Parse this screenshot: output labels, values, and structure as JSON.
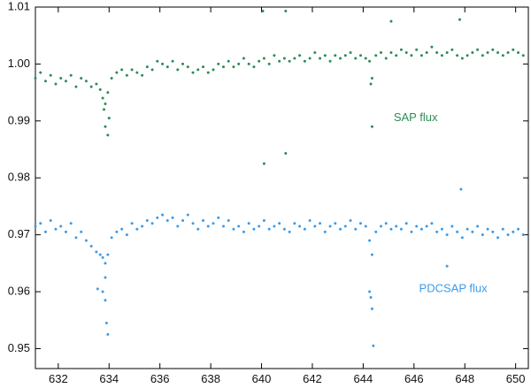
{
  "chart_data": {
    "type": "scatter",
    "title": "",
    "xlabel": "",
    "ylabel": "",
    "xlim": [
      631.1,
      650.5
    ],
    "ylim": [
      0.9465,
      1.01
    ],
    "xticks": [
      632,
      634,
      636,
      638,
      640,
      642,
      644,
      646,
      648,
      650
    ],
    "yticks": [
      0.95,
      0.96,
      0.97,
      0.98,
      0.99,
      1.0,
      1.01
    ],
    "ytick_labels": [
      "0.95",
      "0.96",
      "0.97",
      "0.98",
      "0.99",
      "1.00",
      "1.01"
    ],
    "grid": false,
    "series": [
      {
        "name": "SAP flux",
        "color": "#2e8b57",
        "label_at": [
          645.2,
          0.9905
        ],
        "x": [
          631.1,
          631.3,
          631.5,
          631.7,
          631.9,
          632.1,
          632.3,
          632.5,
          632.7,
          632.9,
          633.1,
          633.3,
          633.5,
          633.65,
          633.75,
          633.85,
          633.95,
          634.1,
          634.3,
          634.5,
          634.7,
          634.9,
          635.1,
          635.3,
          635.5,
          635.7,
          635.9,
          636.1,
          636.3,
          636.5,
          636.7,
          636.9,
          637.1,
          637.3,
          637.5,
          637.7,
          637.9,
          638.1,
          638.3,
          638.5,
          638.7,
          638.9,
          639.1,
          639.3,
          639.5,
          639.7,
          639.9,
          640.1,
          640.3,
          640.5,
          640.7,
          640.9,
          641.1,
          641.3,
          641.5,
          641.7,
          641.9,
          642.1,
          642.3,
          642.5,
          642.7,
          642.9,
          643.1,
          643.3,
          643.5,
          643.7,
          643.9,
          644.1,
          644.25,
          644.35,
          644.5,
          644.7,
          644.9,
          645.1,
          645.3,
          645.5,
          645.7,
          645.9,
          646.1,
          646.3,
          646.5,
          646.7,
          646.9,
          647.1,
          647.3,
          647.5,
          647.7,
          647.9,
          648.1,
          648.3,
          648.5,
          648.7,
          648.9,
          649.1,
          649.3,
          649.5,
          649.7,
          649.9,
          650.1,
          650.3,
          640.05,
          640.95,
          645.1,
          647.8,
          640.1,
          640.95,
          644.35,
          633.8,
          633.85,
          633.95,
          634.0,
          644.3
        ],
        "y": [
          0.9975,
          0.9985,
          0.997,
          0.998,
          0.9965,
          0.9975,
          0.997,
          0.998,
          0.996,
          0.9975,
          0.997,
          0.996,
          0.9965,
          0.9955,
          0.994,
          0.993,
          0.995,
          0.9975,
          0.9985,
          0.999,
          0.998,
          0.999,
          0.9985,
          0.998,
          0.9995,
          0.999,
          1.0005,
          1.0,
          0.9995,
          1.0005,
          0.999,
          1.0,
          0.9995,
          0.9985,
          0.999,
          0.9995,
          0.9985,
          0.999,
          1.0,
          0.9995,
          1.0005,
          0.9995,
          1.0,
          1.001,
          1.0,
          0.9995,
          1.0005,
          1.001,
          1.0,
          1.0015,
          1.0005,
          1.001,
          1.0005,
          1.001,
          1.0015,
          1.0005,
          1.001,
          1.002,
          1.001,
          1.0015,
          1.0005,
          1.0015,
          1.001,
          1.0015,
          1.002,
          1.001,
          1.0015,
          1.001,
          1.0005,
          0.9975,
          1.0015,
          1.002,
          1.001,
          1.002,
          1.0015,
          1.0025,
          1.002,
          1.0015,
          1.0025,
          1.0015,
          1.002,
          1.003,
          1.002,
          1.0015,
          1.002,
          1.0025,
          1.0015,
          1.001,
          1.0015,
          1.002,
          1.0025,
          1.0015,
          1.002,
          1.0025,
          1.002,
          1.0015,
          1.002,
          1.0025,
          1.002,
          1.0015,
          1.0093,
          1.0093,
          1.0075,
          1.0078,
          0.9825,
          0.9843,
          0.989,
          0.992,
          0.989,
          0.9875,
          0.9905,
          0.9965
        ]
      },
      {
        "name": "PDCSAP flux",
        "color": "#3c9be8",
        "label_at": [
          646.2,
          0.9605
        ],
        "x": [
          631.1,
          631.3,
          631.5,
          631.7,
          631.9,
          632.1,
          632.3,
          632.5,
          632.7,
          632.9,
          633.1,
          633.3,
          633.5,
          633.65,
          633.75,
          633.85,
          633.95,
          634.1,
          634.3,
          634.5,
          634.7,
          634.9,
          635.1,
          635.3,
          635.5,
          635.7,
          635.9,
          636.1,
          636.3,
          636.5,
          636.7,
          636.9,
          637.1,
          637.3,
          637.5,
          637.7,
          637.9,
          638.1,
          638.3,
          638.5,
          638.7,
          638.9,
          639.1,
          639.3,
          639.5,
          639.7,
          639.9,
          640.1,
          640.3,
          640.5,
          640.7,
          640.9,
          641.1,
          641.3,
          641.5,
          641.7,
          641.9,
          642.1,
          642.3,
          642.5,
          642.7,
          642.9,
          643.1,
          643.3,
          643.5,
          643.7,
          643.9,
          644.1,
          644.25,
          644.35,
          644.5,
          644.7,
          644.9,
          645.1,
          645.3,
          645.5,
          645.7,
          645.9,
          646.1,
          646.3,
          646.5,
          646.7,
          646.9,
          647.1,
          647.3,
          647.5,
          647.7,
          647.9,
          648.1,
          648.3,
          648.5,
          648.7,
          648.9,
          649.1,
          649.3,
          649.5,
          649.7,
          649.9,
          650.1,
          650.3,
          633.55,
          633.75,
          633.85,
          633.9,
          633.95,
          633.85,
          644.25,
          644.3,
          644.35,
          644.4,
          647.3,
          647.85
        ],
        "y": [
          0.9715,
          0.972,
          0.9705,
          0.9725,
          0.971,
          0.9715,
          0.9705,
          0.972,
          0.9695,
          0.9705,
          0.969,
          0.968,
          0.967,
          0.9665,
          0.966,
          0.965,
          0.9665,
          0.9695,
          0.9705,
          0.971,
          0.97,
          0.972,
          0.971,
          0.9715,
          0.9725,
          0.972,
          0.973,
          0.9735,
          0.9725,
          0.973,
          0.9715,
          0.9725,
          0.9735,
          0.972,
          0.971,
          0.9725,
          0.9715,
          0.972,
          0.973,
          0.9715,
          0.9725,
          0.971,
          0.9715,
          0.9705,
          0.972,
          0.971,
          0.9715,
          0.9725,
          0.971,
          0.9715,
          0.972,
          0.971,
          0.9705,
          0.972,
          0.9715,
          0.971,
          0.9725,
          0.9715,
          0.972,
          0.9705,
          0.9715,
          0.972,
          0.971,
          0.9715,
          0.9725,
          0.971,
          0.972,
          0.9715,
          0.969,
          0.9665,
          0.9705,
          0.9715,
          0.972,
          0.971,
          0.9715,
          0.971,
          0.972,
          0.9705,
          0.9715,
          0.971,
          0.9715,
          0.972,
          0.9705,
          0.971,
          0.97,
          0.9715,
          0.9705,
          0.9695,
          0.971,
          0.9705,
          0.9715,
          0.97,
          0.971,
          0.9705,
          0.9695,
          0.971,
          0.97,
          0.9705,
          0.971,
          0.97,
          0.9605,
          0.96,
          0.9585,
          0.9545,
          0.9525,
          0.9625,
          0.96,
          0.959,
          0.957,
          0.9505,
          0.9645,
          0.978
        ]
      }
    ]
  }
}
